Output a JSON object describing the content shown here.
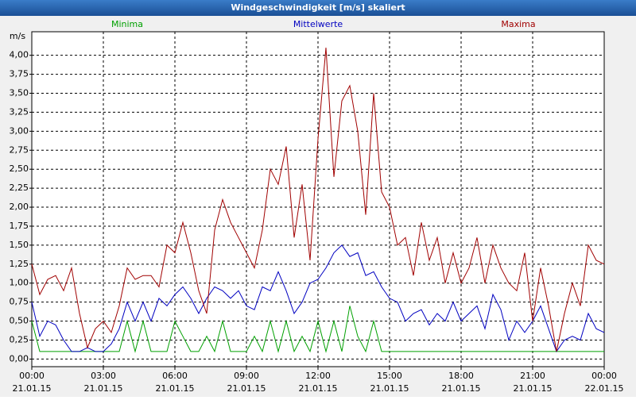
{
  "window_title": "Windgeschwindigkeit [m/s] skaliert",
  "chart_data": {
    "type": "line",
    "y_unit_label": "m/s",
    "x": [
      0,
      0.3333,
      0.6667,
      1,
      1.3333,
      1.6667,
      2,
      2.3333,
      2.6667,
      3,
      3.3333,
      3.6667,
      4,
      4.3333,
      4.6667,
      5,
      5.3333,
      5.6667,
      6,
      6.3333,
      6.6667,
      7,
      7.3333,
      7.6667,
      8,
      8.3333,
      8.6667,
      9,
      9.3333,
      9.6667,
      10,
      10.3333,
      10.6667,
      11,
      11.3333,
      11.6667,
      12,
      12.3333,
      12.6667,
      13,
      13.3333,
      13.6667,
      14,
      14.3333,
      14.6667,
      15,
      15.3333,
      15.6667,
      16,
      16.3333,
      16.6667,
      17,
      17.3333,
      17.6667,
      18,
      18.3333,
      18.6667,
      19,
      19.3333,
      19.6667,
      20,
      20.3333,
      20.6667,
      21,
      21.3333,
      21.6667,
      22,
      22.3333,
      22.6667,
      23,
      23.3333,
      23.6667,
      24
    ],
    "series": [
      {
        "name": "Minima",
        "color": "#00a000",
        "values": [
          0.5,
          0.1,
          0.1,
          0.1,
          0.1,
          0.1,
          0.1,
          0.1,
          0.1,
          0.1,
          0.1,
          0.1,
          0.5,
          0.1,
          0.5,
          0.1,
          0.1,
          0.1,
          0.5,
          0.3,
          0.1,
          0.1,
          0.3,
          0.1,
          0.5,
          0.1,
          0.1,
          0.1,
          0.3,
          0.1,
          0.5,
          0.1,
          0.5,
          0.1,
          0.3,
          0.1,
          0.5,
          0.1,
          0.5,
          0.1,
          0.7,
          0.3,
          0.1,
          0.5,
          0.1,
          0.1,
          0.1,
          0.1,
          0.1,
          0.1,
          0.1,
          0.1,
          0.1,
          0.1,
          0.1,
          0.1,
          0.1,
          0.1,
          0.1,
          0.1,
          0.1,
          0.1,
          0.1,
          0.1,
          0.1,
          0.1,
          0.1,
          0.1,
          0.1,
          0.1,
          0.1,
          0.1,
          0.1
        ]
      },
      {
        "name": "Mittelwerte",
        "color": "#0000c0",
        "values": [
          0.75,
          0.3,
          0.5,
          0.45,
          0.25,
          0.1,
          0.1,
          0.15,
          0.1,
          0.1,
          0.2,
          0.4,
          0.75,
          0.5,
          0.75,
          0.5,
          0.8,
          0.7,
          0.85,
          0.95,
          0.8,
          0.6,
          0.8,
          0.95,
          0.9,
          0.8,
          0.9,
          0.7,
          0.65,
          0.95,
          0.9,
          1.15,
          0.9,
          0.6,
          0.75,
          1.0,
          1.05,
          1.2,
          1.4,
          1.5,
          1.35,
          1.4,
          1.1,
          1.15,
          0.95,
          0.8,
          0.75,
          0.5,
          0.6,
          0.65,
          0.45,
          0.6,
          0.5,
          0.75,
          0.5,
          0.6,
          0.7,
          0.4,
          0.85,
          0.65,
          0.25,
          0.5,
          0.35,
          0.5,
          0.7,
          0.4,
          0.1,
          0.25,
          0.3,
          0.25,
          0.6,
          0.4,
          0.35
        ]
      },
      {
        "name": "Maxima",
        "color": "#a00000",
        "values": [
          1.25,
          0.85,
          1.05,
          1.1,
          0.9,
          1.2,
          0.6,
          0.15,
          0.4,
          0.5,
          0.35,
          0.7,
          1.2,
          1.05,
          1.1,
          1.1,
          0.95,
          1.5,
          1.4,
          1.8,
          1.4,
          0.9,
          0.6,
          1.7,
          2.1,
          1.8,
          1.6,
          1.4,
          1.2,
          1.7,
          2.5,
          2.3,
          2.8,
          1.6,
          2.3,
          1.3,
          2.9,
          4.1,
          2.4,
          3.4,
          3.6,
          3.0,
          1.9,
          3.5,
          2.2,
          2.0,
          1.5,
          1.6,
          1.1,
          1.8,
          1.3,
          1.6,
          1.0,
          1.4,
          1.0,
          1.2,
          1.6,
          1.0,
          1.5,
          1.2,
          1.0,
          0.9,
          1.4,
          0.5,
          1.2,
          0.7,
          0.1,
          0.6,
          1.0,
          0.7,
          1.5,
          1.3,
          1.25
        ]
      }
    ],
    "xlim": [
      0,
      24
    ],
    "xticks": [
      {
        "value": 0,
        "label": "00:00"
      },
      {
        "value": 3,
        "label": "03:00"
      },
      {
        "value": 6,
        "label": "06:00"
      },
      {
        "value": 9,
        "label": "09:00"
      },
      {
        "value": 12,
        "label": "12:00"
      },
      {
        "value": 15,
        "label": "15:00"
      },
      {
        "value": 18,
        "label": "18:00"
      },
      {
        "value": 21,
        "label": "21:00"
      },
      {
        "value": 24,
        "label": "00:00"
      }
    ],
    "xtick_dates": [
      "21.01.15",
      "21.01.15",
      "21.01.15",
      "21.01.15",
      "21.01.15",
      "21.01.15",
      "21.01.15",
      "21.01.15",
      "22.01.15"
    ],
    "ylim": [
      -0.1,
      4.31
    ],
    "yticks": [
      {
        "value": 0,
        "label": "0,00"
      },
      {
        "value": 0.25,
        "label": "0,25"
      },
      {
        "value": 0.5,
        "label": "0,50"
      },
      {
        "value": 0.75,
        "label": "0,75"
      },
      {
        "value": 1,
        "label": "1,00"
      },
      {
        "value": 1.25,
        "label": "1,25"
      },
      {
        "value": 1.5,
        "label": "1,50"
      },
      {
        "value": 1.75,
        "label": "1,75"
      },
      {
        "value": 2,
        "label": "2,00"
      },
      {
        "value": 2.25,
        "label": "2,25"
      },
      {
        "value": 2.5,
        "label": "2,50"
      },
      {
        "value": 2.75,
        "label": "2,75"
      },
      {
        "value": 3,
        "label": "3,00"
      },
      {
        "value": 3.25,
        "label": "3,25"
      },
      {
        "value": 3.5,
        "label": "3,50"
      },
      {
        "value": 3.75,
        "label": "3,75"
      },
      {
        "value": 4,
        "label": "4,00"
      }
    ],
    "grid": true
  }
}
